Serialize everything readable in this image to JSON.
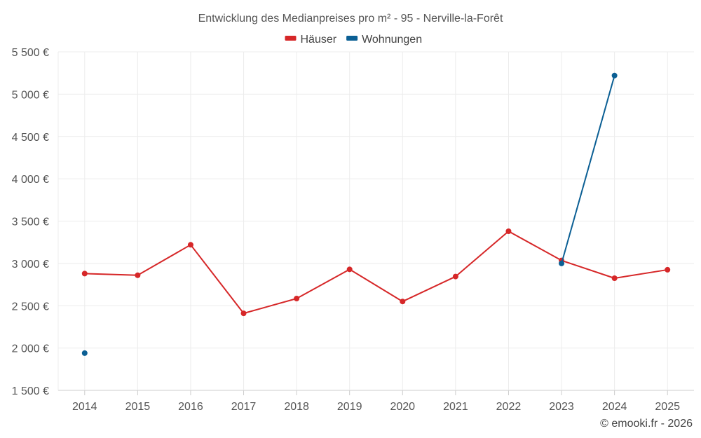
{
  "chart_data": {
    "type": "line",
    "title": "Entwicklung des Medianpreises pro m² - 95 - Nerville-la-Forêt",
    "categories": [
      "2014",
      "2015",
      "2016",
      "2017",
      "2018",
      "2019",
      "2020",
      "2021",
      "2022",
      "2023",
      "2024",
      "2025"
    ],
    "ylim": [
      1500,
      5500
    ],
    "yticks": [
      1500,
      2000,
      2500,
      3000,
      3500,
      4000,
      4500,
      5000,
      5500
    ],
    "ytick_labels": [
      "1 500 €",
      "2 000 €",
      "2 500 €",
      "3 000 €",
      "3 500 €",
      "4 000 €",
      "4 500 €",
      "5 000 €",
      "5 500 €"
    ],
    "grid": true,
    "legend_position": "top-center",
    "series": [
      {
        "name": "Häuser",
        "color": "#d62728",
        "values": [
          2880,
          2860,
          3220,
          2410,
          2585,
          2930,
          2550,
          2845,
          3380,
          3035,
          2825,
          2925
        ]
      },
      {
        "name": "Wohnungen",
        "color": "#0b5f94",
        "values": [
          1940,
          null,
          null,
          null,
          null,
          null,
          null,
          null,
          null,
          3000,
          5220,
          null
        ]
      }
    ],
    "credit": "© emooki.fr - 2026"
  }
}
